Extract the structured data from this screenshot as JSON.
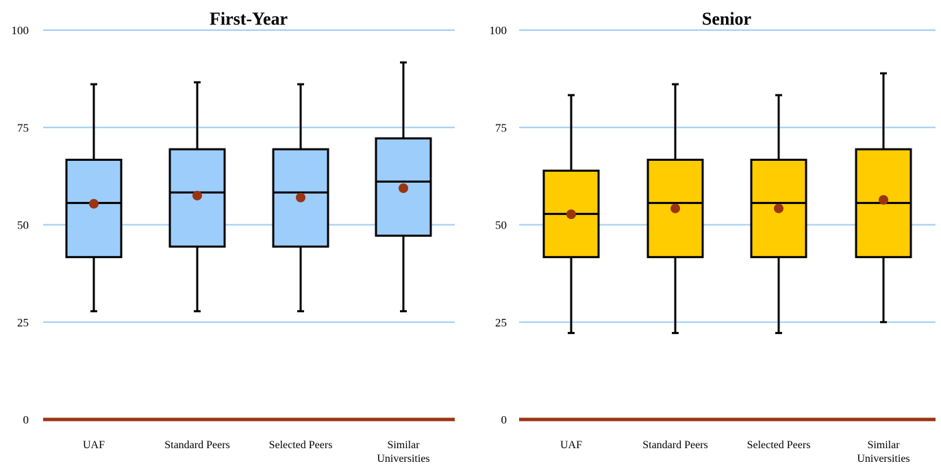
{
  "chart_data": [
    {
      "type": "boxplot",
      "title": "First-Year",
      "categories": [
        "UAF",
        "Standard Peers",
        "Selected Peers",
        "Similar Universities"
      ],
      "ylim": [
        0,
        100
      ],
      "yticks": [
        0,
        25,
        50,
        75,
        100
      ],
      "grid": true,
      "box_color": "#9dcdfb",
      "mean_color": "#9a3412",
      "baseline_color": "#9a3412",
      "grid_color": "#9dcdf5",
      "boxes": [
        {
          "min": 27.8,
          "q1": 41.7,
          "median": 55.6,
          "q3": 66.7,
          "max": 86.1,
          "mean": 55.4
        },
        {
          "min": 27.8,
          "q1": 44.4,
          "median": 58.3,
          "q3": 69.4,
          "max": 86.6,
          "mean": 57.5
        },
        {
          "min": 27.8,
          "q1": 44.4,
          "median": 58.3,
          "q3": 69.4,
          "max": 86.1,
          "mean": 57.0
        },
        {
          "min": 27.8,
          "q1": 47.2,
          "median": 61.1,
          "q3": 72.2,
          "max": 91.7,
          "mean": 59.4
        }
      ]
    },
    {
      "type": "boxplot",
      "title": "Senior",
      "categories": [
        "UAF",
        "Standard Peers",
        "Selected Peers",
        "Similar Universities"
      ],
      "ylim": [
        0,
        100
      ],
      "yticks": [
        0,
        25,
        50,
        75,
        100
      ],
      "grid": true,
      "box_color": "#ffcc00",
      "mean_color": "#9a3412",
      "baseline_color": "#9a3412",
      "grid_color": "#9dcdf5",
      "boxes": [
        {
          "min": 22.2,
          "q1": 41.7,
          "median": 52.8,
          "q3": 63.9,
          "max": 83.3,
          "mean": 52.7
        },
        {
          "min": 22.2,
          "q1": 41.7,
          "median": 55.6,
          "q3": 66.7,
          "max": 86.1,
          "mean": 54.2
        },
        {
          "min": 22.2,
          "q1": 41.7,
          "median": 55.6,
          "q3": 66.7,
          "max": 83.3,
          "mean": 54.2
        },
        {
          "min": 25.0,
          "q1": 41.7,
          "median": 55.6,
          "q3": 69.4,
          "max": 88.9,
          "mean": 56.4
        }
      ]
    }
  ]
}
